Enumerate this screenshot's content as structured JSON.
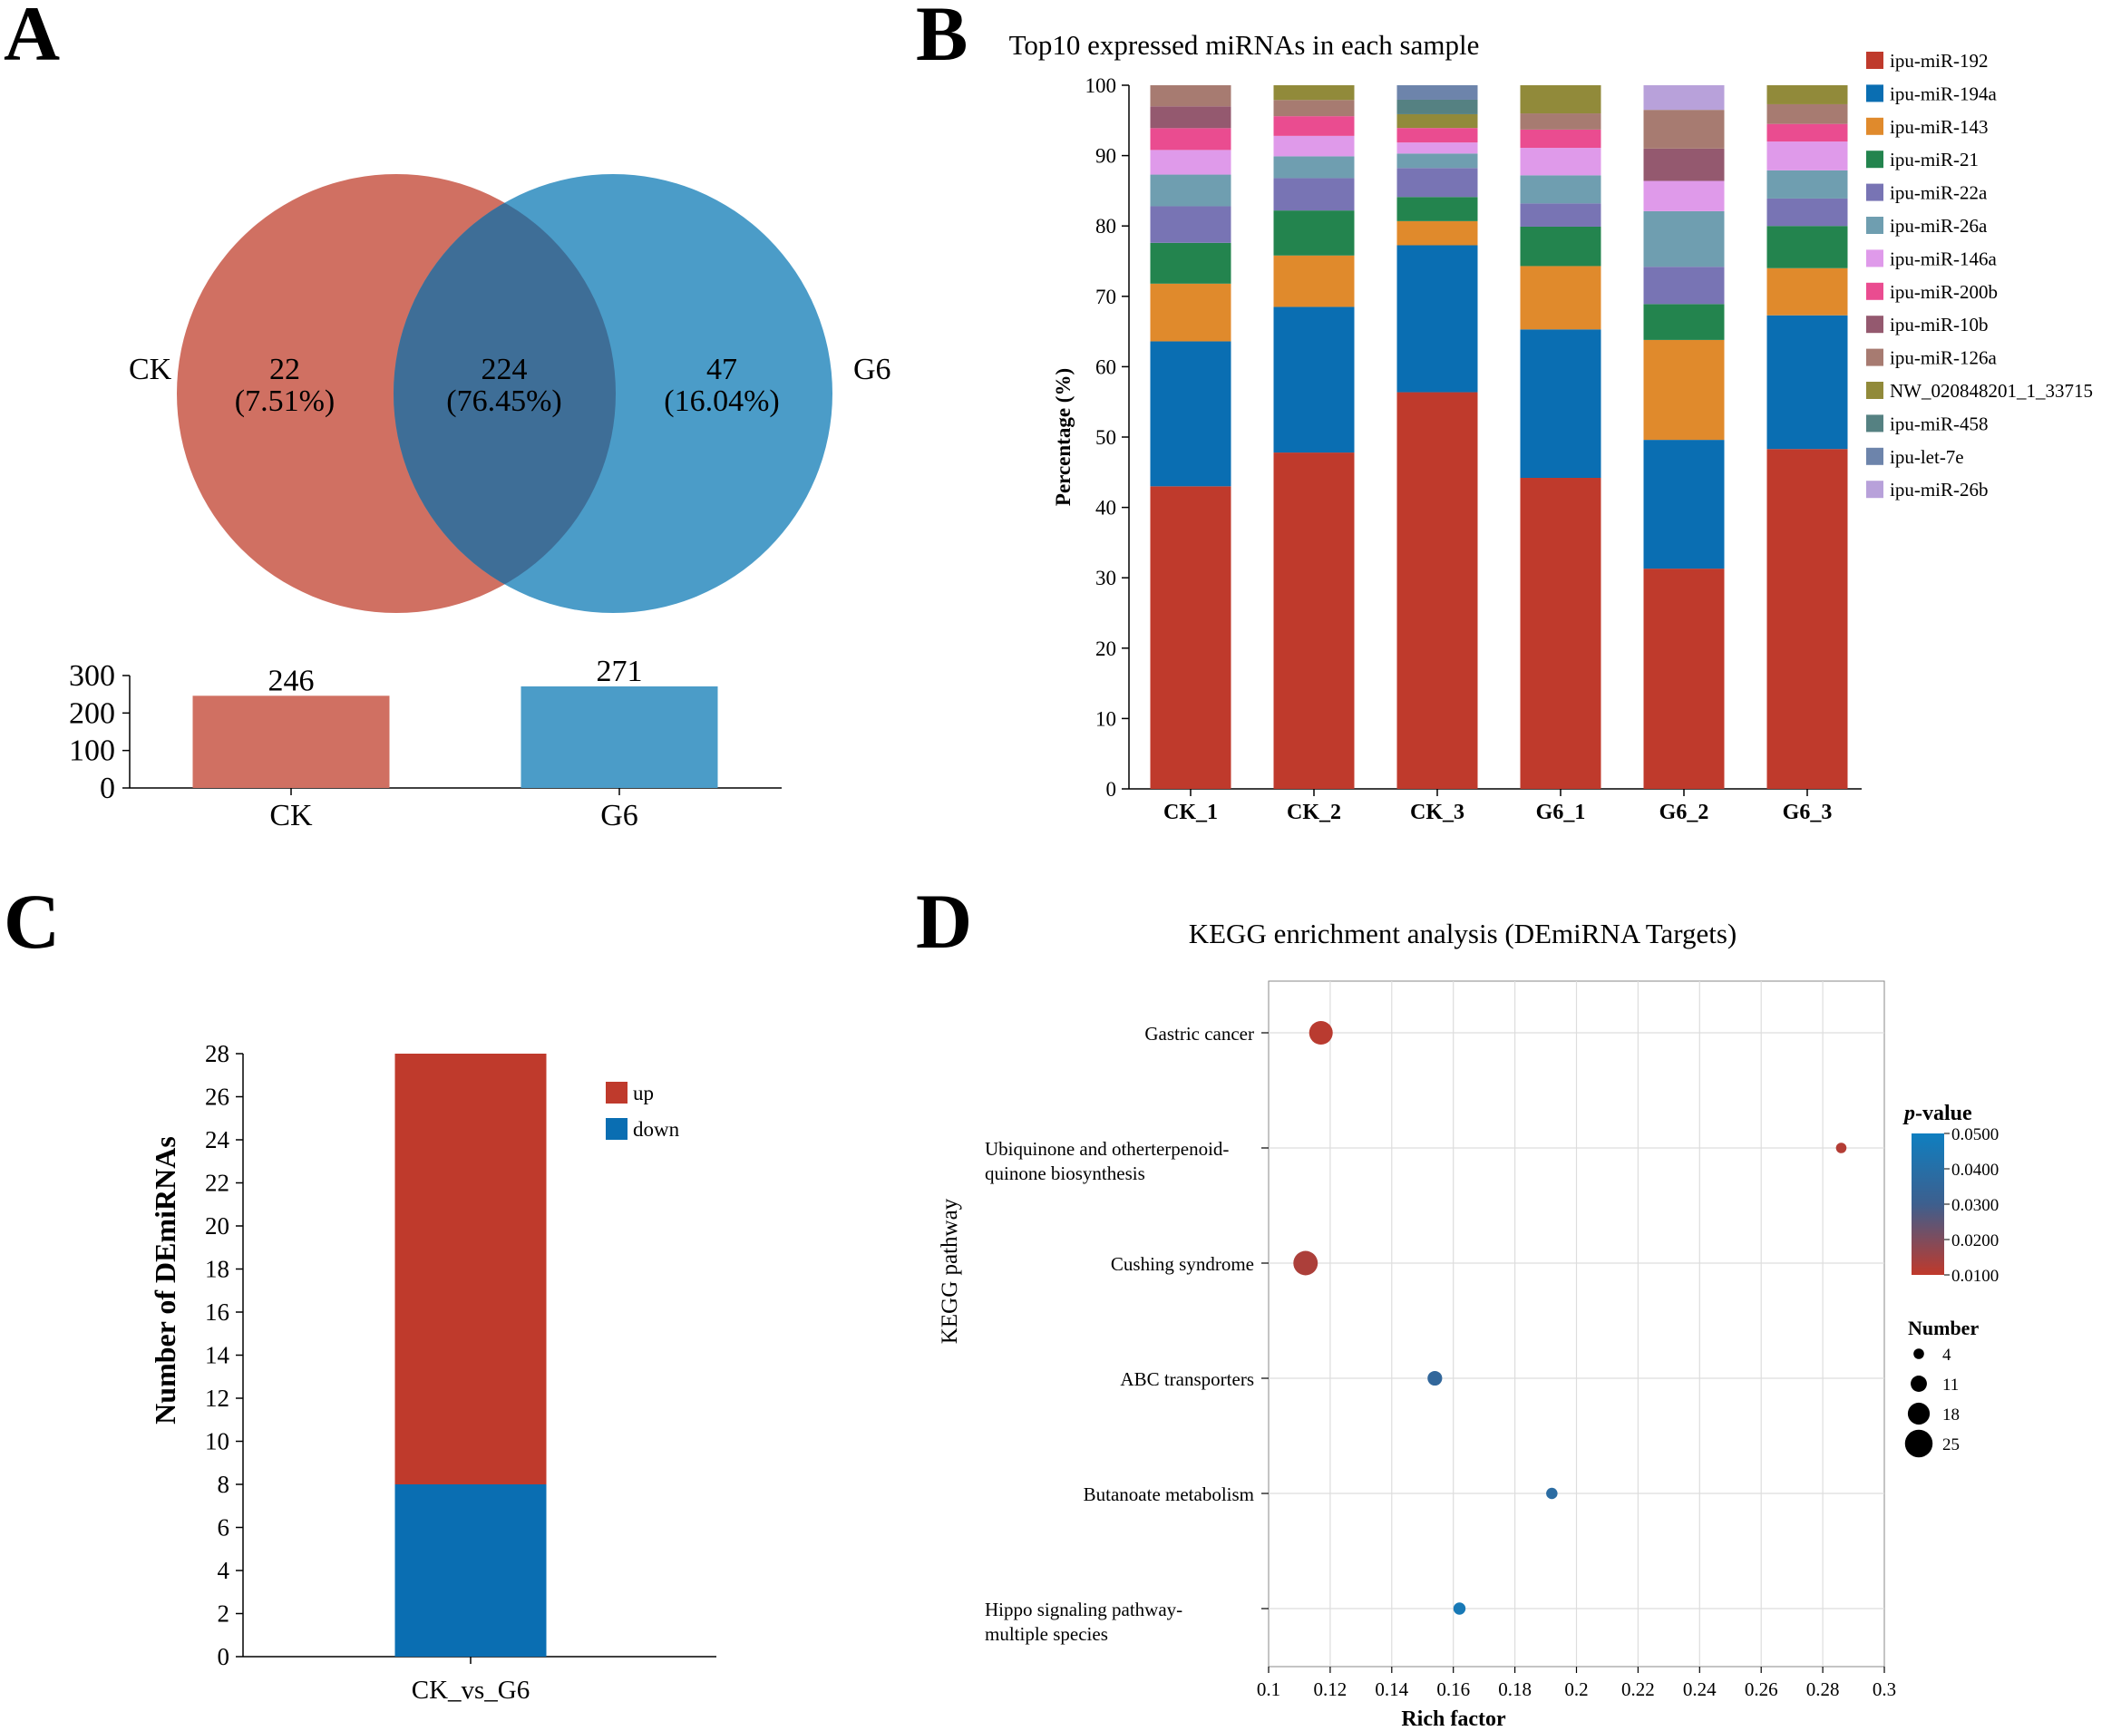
{
  "panels": {
    "A": {
      "letter": "A"
    },
    "B": {
      "letter": "B"
    },
    "C": {
      "letter": "C"
    },
    "D": {
      "letter": "D"
    }
  },
  "colors": {
    "ck": "#d07062",
    "g6": "#4b9cc8",
    "overlap": "#3e6e97",
    "up": "#bf3a2c",
    "down": "#0a6eb2"
  },
  "chart_data": [
    {
      "panel": "A",
      "type": "venn",
      "sets": [
        {
          "label": "CK",
          "unique": "22",
          "unique_pct": "(7.51%)",
          "color": "#d07062"
        },
        {
          "label": "G6",
          "unique": "47",
          "unique_pct": "(16.04%)",
          "color": "#4b9cc8"
        }
      ],
      "overlap": {
        "count": "224",
        "pct": "(76.45%)",
        "color": "#3e6e97"
      }
    },
    {
      "panel": "A",
      "type": "bar",
      "categories": [
        "CK",
        "G6"
      ],
      "values": [
        246,
        271
      ],
      "value_labels": [
        "246",
        "271"
      ],
      "colors": [
        "#d07062",
        "#4b9cc8"
      ],
      "ylim": [
        0,
        300
      ],
      "yticks": [
        0,
        100,
        200,
        300
      ],
      "ytick_labels": [
        "0",
        "100",
        "200",
        "300"
      ]
    },
    {
      "panel": "B",
      "type": "bar",
      "stacked": true,
      "title": "Top10 expressed miRNAs in each sample",
      "xlabel": "",
      "ylabel": "Percentage (%)",
      "ylim": [
        0,
        100
      ],
      "yticks": [
        0,
        10,
        20,
        30,
        40,
        50,
        60,
        70,
        80,
        90,
        100
      ],
      "ytick_labels": [
        "0",
        "10",
        "20",
        "30",
        "40",
        "50",
        "60",
        "70",
        "80",
        "90",
        "100"
      ],
      "legend_position": "right",
      "categories": [
        "CK_1",
        "CK_2",
        "CK_3",
        "G6_1",
        "G6_2",
        "G6_3"
      ],
      "series": [
        {
          "name": "ipu-miR-192",
          "color": "#bf3a2c",
          "values": [
            43,
            47.8,
            57.5,
            44.2,
            31.3,
            48.3
          ]
        },
        {
          "name": "ipu-miR-194a",
          "color": "#0a6eb2",
          "values": [
            20.6,
            20.7,
            21.3,
            21.1,
            18.3,
            19
          ]
        },
        {
          "name": "ipu-miR-143",
          "color": "#e08a2c",
          "values": [
            8.2,
            7.3,
            3.5,
            9,
            14.2,
            6.7
          ]
        },
        {
          "name": "ipu-miR-21",
          "color": "#23844e",
          "values": [
            5.8,
            6.4,
            3.5,
            5.6,
            5.1,
            6
          ]
        },
        {
          "name": "ipu-miR-22a",
          "color": "#7874b4",
          "values": [
            5.2,
            4.6,
            4.2,
            3.3,
            5.3,
            3.9
          ]
        },
        {
          "name": "ipu-miR-26a",
          "color": "#6f9eb0",
          "values": [
            4.5,
            3.1,
            2.1,
            4,
            7.9,
            4
          ]
        },
        {
          "name": "ipu-miR-146a",
          "color": "#df9aea",
          "values": [
            3.5,
            2.9,
            1.6,
            3.9,
            4.3,
            4.1
          ]
        },
        {
          "name": "ipu-miR-200b",
          "color": "#ea4c90",
          "values": [
            3.1,
            2.8,
            2.1,
            2.6,
            0,
            2.5
          ]
        },
        {
          "name": "ipu-miR-10b",
          "color": "#94596f",
          "values": [
            3.1,
            0,
            0,
            0,
            4.6,
            0
          ]
        },
        {
          "name": "ipu-miR-126a",
          "color": "#a77b71",
          "values": [
            3,
            2.3,
            0,
            2.3,
            5.5,
            2.8
          ]
        },
        {
          "name": "NW_020848201_1_33715",
          "color": "#918a3a",
          "values": [
            0,
            2.1,
            2,
            4,
            0,
            2.7
          ]
        },
        {
          "name": "ipu-miR-458",
          "color": "#558182",
          "values": [
            0,
            0,
            2.1,
            0,
            0,
            0
          ]
        },
        {
          "name": "ipu-let-7e",
          "color": "#6d84ab",
          "values": [
            0,
            0,
            2.1,
            0,
            0,
            0
          ]
        },
        {
          "name": "ipu-miR-26b",
          "color": "#b8a1da",
          "values": [
            0,
            0,
            0,
            0,
            3.5,
            0
          ]
        }
      ]
    },
    {
      "panel": "C",
      "type": "bar",
      "stacked": true,
      "xlabel": "",
      "ylabel": "Number of DEmiRNAs",
      "ylim": [
        0,
        28
      ],
      "yticks": [
        0,
        2,
        4,
        6,
        8,
        10,
        12,
        14,
        16,
        18,
        20,
        22,
        24,
        26,
        28
      ],
      "ytick_labels": [
        "0",
        "2",
        "4",
        "6",
        "8",
        "10",
        "12",
        "14",
        "16",
        "18",
        "20",
        "22",
        "24",
        "26",
        "28"
      ],
      "legend_position": "top-right",
      "categories": [
        "CK_vs_G6"
      ],
      "series": [
        {
          "name": "down",
          "color": "#0a6eb2",
          "values": [
            8
          ]
        },
        {
          "name": "up",
          "color": "#bf3a2c",
          "values": [
            20
          ]
        }
      ],
      "legend_order": [
        "up",
        "down"
      ]
    },
    {
      "panel": "D",
      "type": "scatter",
      "title": "KEGG enrichment analysis (DEmiRNA Targets)",
      "xlabel": "Rich factor",
      "ylabel": "KEGG pathway",
      "xlim": [
        0.1,
        0.3
      ],
      "xticks": [
        0.1,
        0.12,
        0.14,
        0.16,
        0.18,
        0.2,
        0.22,
        0.24,
        0.26,
        0.28,
        0.3
      ],
      "xtick_labels": [
        "0.1",
        "0.12",
        "0.14",
        "0.16",
        "0.18",
        "0.2",
        "0.22",
        "0.24",
        "0.26",
        "0.28",
        "0.3"
      ],
      "grid": true,
      "pathway_labels": [
        [
          "Gastric cancer"
        ],
        [
          "Ubiquinone and otherterpenoid-",
          "quinone biosynthesis"
        ],
        [
          "Cushing syndrome"
        ],
        [
          "ABC transporters"
        ],
        [
          "Butanoate metabolism"
        ],
        [
          "Hippo signaling pathway-",
          "multiple species"
        ]
      ],
      "points": [
        {
          "x": 0.117,
          "number": 20,
          "p": 0.011
        },
        {
          "x": 0.286,
          "number": 4,
          "p": 0.012
        },
        {
          "x": 0.112,
          "number": 21,
          "p": 0.013
        },
        {
          "x": 0.154,
          "number": 9,
          "p": 0.035
        },
        {
          "x": 0.192,
          "number": 5,
          "p": 0.038
        },
        {
          "x": 0.162,
          "number": 6,
          "p": 0.046
        }
      ],
      "color_legend": {
        "title_italic": "p",
        "title_rest": "-value",
        "min": 0.01,
        "max": 0.05,
        "ticks": [
          0.05,
          0.04,
          0.03,
          0.02,
          0.01
        ],
        "tick_labels": [
          "0.0500",
          "0.0400",
          "0.0300",
          "0.0200",
          "0.0100"
        ],
        "low_color": "#c0392b",
        "mid_color": "#3d5f8e",
        "high_color": "#0f7fc0"
      },
      "size_legend": {
        "title": "Number",
        "values": [
          4,
          11,
          18,
          25
        ],
        "labels": [
          "4",
          "11",
          "18",
          "25"
        ]
      }
    }
  ]
}
